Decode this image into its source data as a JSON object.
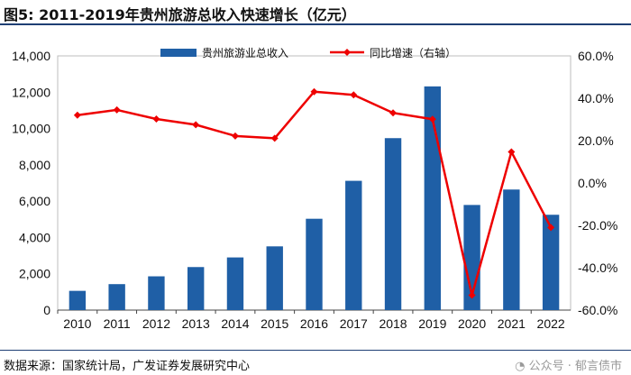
{
  "title": "图5:  2011-2019年贵州旅游总收入快速增长（亿元）",
  "source": "数据来源：国家统计局，广发证券发展研究中心",
  "watermark": "公众号 · 郁言债市",
  "watermark_icon": "wechat-icon",
  "colors": {
    "bar": "#1f5fa6",
    "line": "#ee0000",
    "rule": "#1f3f74"
  },
  "chart_data": {
    "type": "bar",
    "categories": [
      "2010",
      "2011",
      "2012",
      "2013",
      "2014",
      "2015",
      "2016",
      "2017",
      "2018",
      "2019",
      "2020",
      "2021",
      "2022"
    ],
    "series": [
      {
        "name": "贵州旅游业总收入",
        "type": "bar",
        "axis": "left",
        "values": [
          1060,
          1430,
          1860,
          2370,
          2900,
          3510,
          5030,
          7120,
          9470,
          12320,
          5790,
          6640,
          5250
        ]
      },
      {
        "name": "同比增速（右轴）",
        "type": "line",
        "axis": "right",
        "unit": "%",
        "values": [
          32.0,
          34.5,
          30.2,
          27.5,
          22.2,
          21.1,
          43.1,
          41.6,
          33.1,
          30.1,
          -53.0,
          14.7,
          -21.0
        ]
      }
    ],
    "y_left": {
      "min": 0,
      "max": 14000,
      "ticks": [
        "0",
        "2,000",
        "4,000",
        "6,000",
        "8,000",
        "10,000",
        "12,000",
        "14,000"
      ]
    },
    "y_right": {
      "min": -60,
      "max": 60,
      "ticks": [
        "-60.0%",
        "-40.0%",
        "-20.0%",
        "0.0%",
        "20.0%",
        "40.0%",
        "60.0%"
      ]
    },
    "grid": false,
    "legend": "top"
  }
}
